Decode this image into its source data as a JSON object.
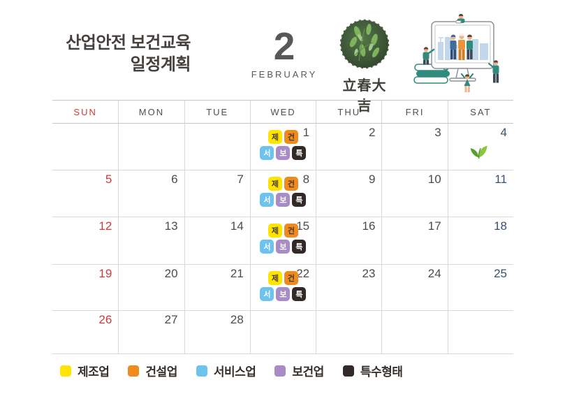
{
  "header": {
    "title_line1": "산업안전 보건교육",
    "title_line2": "일정계획",
    "month_number": "2",
    "month_name": "FEBRUARY",
    "calligraphy": "立春大吉"
  },
  "calendar": {
    "day_headers": [
      "SUN",
      "MON",
      "TUE",
      "WED",
      "THU",
      "FRI",
      "SAT"
    ],
    "weeks": [
      [
        {
          "date": ""
        },
        {
          "date": ""
        },
        {
          "date": ""
        },
        {
          "date": "1",
          "badges": true
        },
        {
          "date": "2"
        },
        {
          "date": "3"
        },
        {
          "date": "4",
          "sprout": true
        }
      ],
      [
        {
          "date": "5"
        },
        {
          "date": "6"
        },
        {
          "date": "7"
        },
        {
          "date": "8",
          "badges": true
        },
        {
          "date": "9"
        },
        {
          "date": "10"
        },
        {
          "date": "11"
        }
      ],
      [
        {
          "date": "12"
        },
        {
          "date": "13"
        },
        {
          "date": "14"
        },
        {
          "date": "15",
          "badges": true
        },
        {
          "date": "16"
        },
        {
          "date": "17"
        },
        {
          "date": "18"
        }
      ],
      [
        {
          "date": "19"
        },
        {
          "date": "20"
        },
        {
          "date": "21"
        },
        {
          "date": "22",
          "badges": true
        },
        {
          "date": "23"
        },
        {
          "date": "24"
        },
        {
          "date": "25"
        }
      ],
      [
        {
          "date": "26"
        },
        {
          "date": "27"
        },
        {
          "date": "28"
        },
        {
          "date": ""
        },
        {
          "date": ""
        },
        {
          "date": ""
        },
        {
          "date": ""
        }
      ]
    ]
  },
  "event_badges": {
    "row1": [
      {
        "label": "제",
        "bg": "#ffe400",
        "fg": "#473a28"
      },
      {
        "label": "건",
        "bg": "#ef8a1e",
        "fg": "#473a28"
      }
    ],
    "row2": [
      {
        "label": "서",
        "bg": "#6dc2ee",
        "fg": "#ffffff"
      },
      {
        "label": "보",
        "bg": "#a88bc7",
        "fg": "#ffffff"
      },
      {
        "label": "특",
        "bg": "#332a27",
        "fg": "#ffffff"
      }
    ]
  },
  "legend": {
    "items": [
      {
        "label": "제조업",
        "color": "#ffe400"
      },
      {
        "label": "건설업",
        "color": "#ef8a1e"
      },
      {
        "label": "서비스업",
        "color": "#6dc2ee"
      },
      {
        "label": "보건업",
        "color": "#a88bc7"
      },
      {
        "label": "특수형태",
        "color": "#332a27"
      }
    ]
  },
  "colors": {
    "sunday": "#d03a3a",
    "saturday": "#38506f",
    "weekday": "#4c4c4c"
  }
}
